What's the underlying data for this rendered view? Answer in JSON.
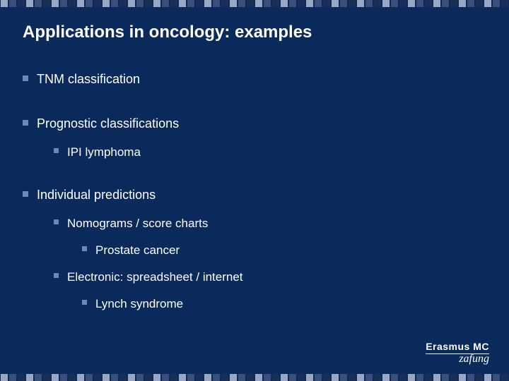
{
  "colors": {
    "background": "#0a2a5c",
    "text": "#ffffff",
    "bullet": "#6a8bb8",
    "border_dash_a": "#9aa7c4",
    "border_dash_b": "#3a4e7a",
    "border_dash_c": "#1a2f55"
  },
  "title": "Applications in oncology: examples",
  "title_fontsize": 24,
  "body_fontsize": 18,
  "outline": [
    {
      "level": 0,
      "text": "TNM classification"
    },
    {
      "level": 0,
      "text": "Prognostic classifications"
    },
    {
      "level": 1,
      "text": "IPI lymphoma"
    },
    {
      "level": 0,
      "text": "Individual predictions"
    },
    {
      "level": 1,
      "text": "Nomograms / score charts"
    },
    {
      "level": 2,
      "text": "Prostate cancer"
    },
    {
      "level": 1,
      "text": "Electronic: spreadsheet / internet"
    },
    {
      "level": 2,
      "text": "Lynch syndrome"
    }
  ],
  "logo": {
    "line1": "Erasmus MC",
    "line2": "zafung"
  },
  "border": {
    "dash_count": 60,
    "pattern": [
      "#9aa7c4",
      "#3a4e7a",
      "#1a2f55"
    ]
  }
}
